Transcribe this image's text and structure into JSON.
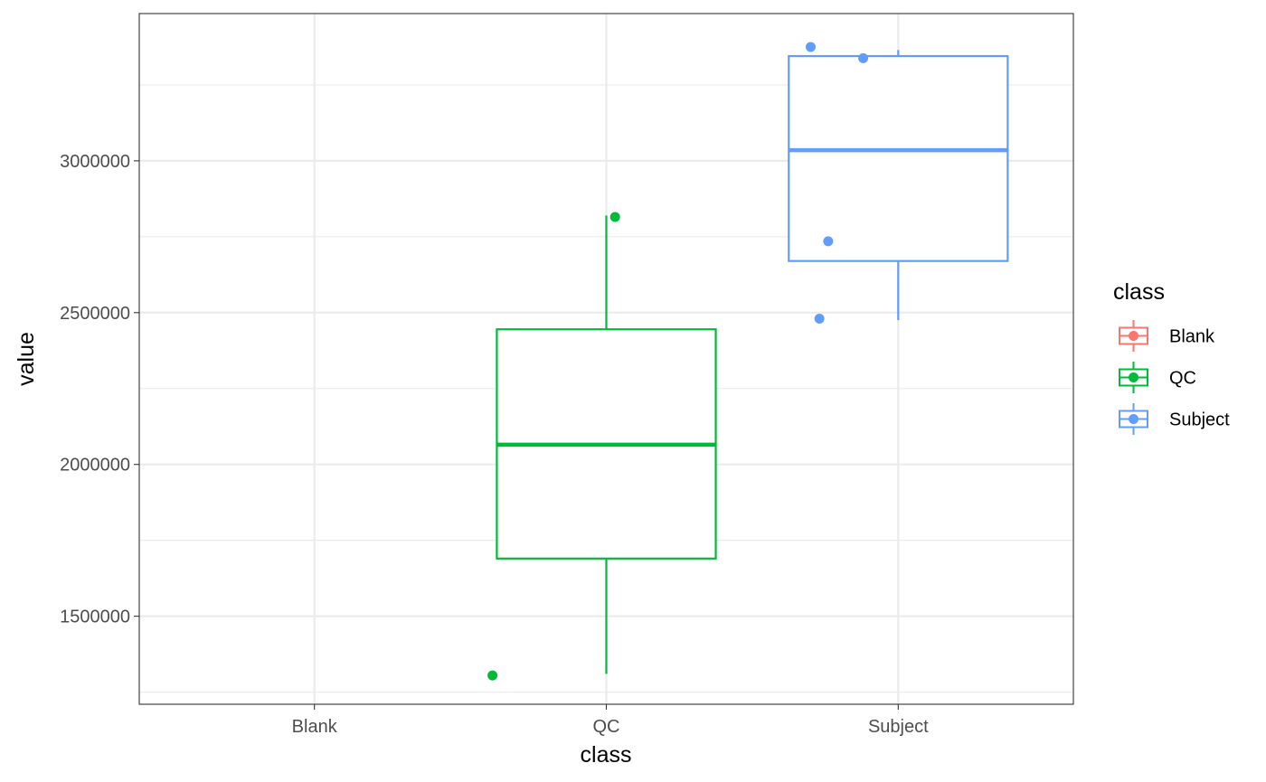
{
  "chart_data": {
    "type": "boxplot",
    "xlabel": "class",
    "ylabel": "value",
    "categories": [
      "Blank",
      "QC",
      "Subject"
    ],
    "y_ticks": [
      1500000,
      2000000,
      2500000,
      3000000
    ],
    "y_tick_labels": [
      "1500000",
      "2000000",
      "2500000",
      "3000000"
    ],
    "ylim": [
      1210000,
      3485000
    ],
    "grid": true,
    "legend": {
      "title": "class",
      "position": "right",
      "entries": [
        "Blank",
        "QC",
        "Subject"
      ]
    },
    "colors": {
      "Blank": "#F8766D",
      "QC": "#00BA38",
      "Subject": "#619CFF"
    },
    "boxes": [
      {
        "class": "Blank",
        "present": false
      },
      {
        "class": "QC",
        "present": true,
        "lower_whisker": 1310000,
        "q1": 1690000,
        "median": 2065000,
        "q3": 2445000,
        "upper_whisker": 2820000
      },
      {
        "class": "Subject",
        "present": true,
        "lower_whisker": 2475000,
        "q1": 2670000,
        "median": 3035000,
        "q3": 3345000,
        "upper_whisker": 3365000
      }
    ],
    "points": [
      {
        "class": "QC",
        "jitter": -0.39,
        "value": 1305000
      },
      {
        "class": "QC",
        "jitter": 0.03,
        "value": 2815000
      },
      {
        "class": "Subject",
        "jitter": -0.3,
        "value": 3375000
      },
      {
        "class": "Subject",
        "jitter": -0.12,
        "value": 3338000
      },
      {
        "class": "Subject",
        "jitter": -0.24,
        "value": 2735000
      },
      {
        "class": "Subject",
        "jitter": -0.27,
        "value": 2480000
      }
    ]
  }
}
